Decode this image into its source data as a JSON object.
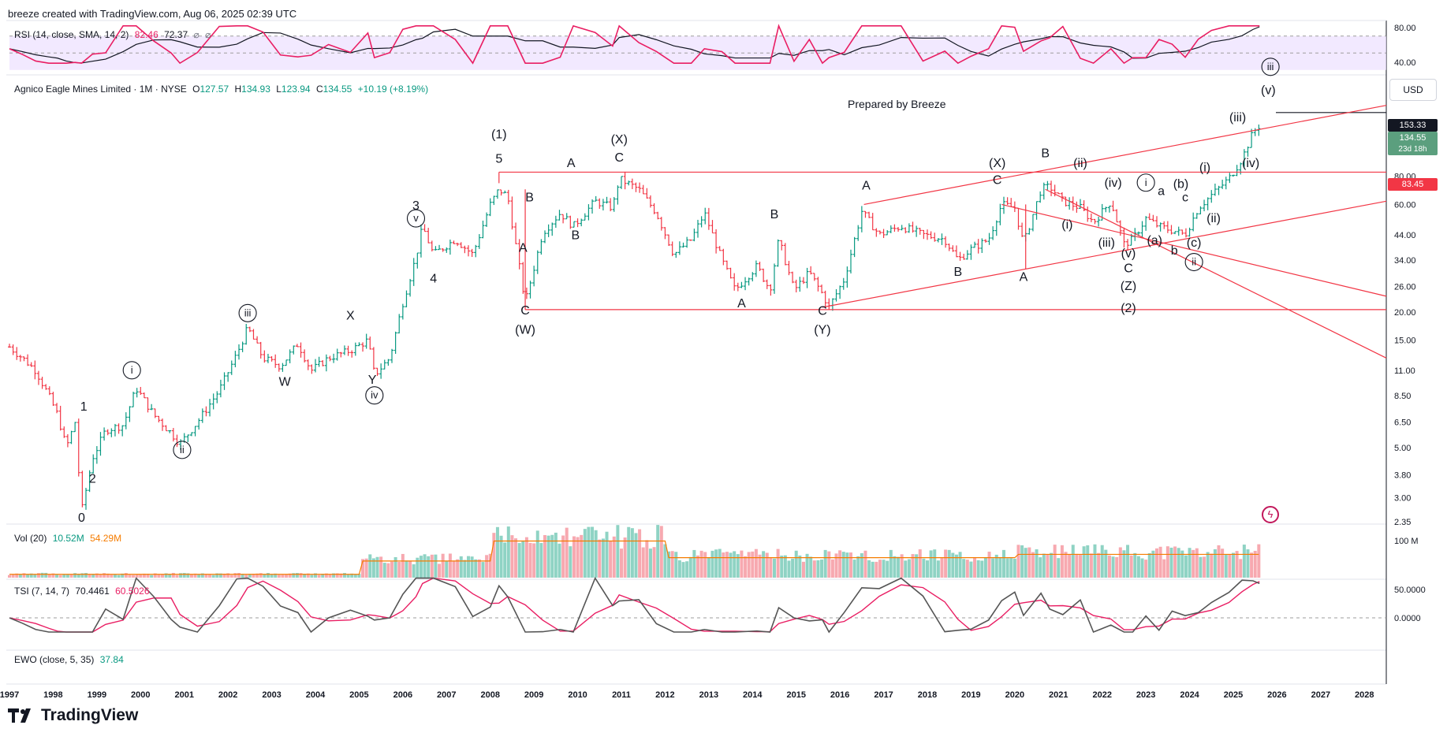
{
  "header": {
    "caption": "breeze created with TradingView.com, Aug 06, 2025 02:39 UTC"
  },
  "main_pane": {
    "symbol_legend": "Agnico Eagle Mines Limited · 1M · NYSE",
    "open_label": "O",
    "open": "127.57",
    "high_label": "H",
    "high": "134.93",
    "low_label": "L",
    "low": "123.94",
    "close_label": "C",
    "close": "134.55",
    "change": "+10.19 (+8.19%)",
    "currency": "USD",
    "note": "Prepared by Breeze",
    "price_tags": {
      "resistance": "153.33",
      "last": "134.55",
      "countdown": "23d 18h",
      "support": "83.45"
    }
  },
  "rsi_pane": {
    "legend": "RSI (14, close, SMA, 14, 2)",
    "rsi_value": "82.46",
    "sma_value": "72.37",
    "band_upper": 70,
    "band_lower": 30,
    "ticks": [
      "80.00",
      "40.00"
    ]
  },
  "vol_pane": {
    "legend": "Vol (20)",
    "vol_value": "10.52M",
    "ma_value": "54.29M",
    "ticks": [
      "100 M"
    ]
  },
  "tsi_pane": {
    "legend": "TSI (7, 14, 7)",
    "tsi_value": "70.4461",
    "signal_value": "60.5026",
    "ticks": [
      "50.0000",
      "0.0000"
    ]
  },
  "ewo_pane": {
    "legend": "EWO (close, 5, 35)",
    "ewo_value": "37.84"
  },
  "footer": {
    "brand": "TradingView"
  },
  "colors": {
    "up": "#089981",
    "down": "#f23645",
    "rsi": "#e91e63",
    "rsi_band": "#ede0ff",
    "tsi_signal": "#e91e63",
    "vol_ma": "#f57c00",
    "trendline": "#f23645",
    "last_price": "#4caf50",
    "resistance": "#131722"
  },
  "chart_data": {
    "type": "ohlc",
    "title": "Agnico Eagle Mines Limited",
    "timeframe": "1M",
    "y_scale": "log",
    "y_ticks": [
      "80.00",
      "60.00",
      "44.00",
      "34.00",
      "26.00",
      "20.00",
      "15.00",
      "11.00",
      "8.50",
      "6.50",
      "5.00",
      "3.80",
      "3.00",
      "2.35"
    ],
    "x_ticks": [
      "1997",
      "1998",
      "1999",
      "2000",
      "2001",
      "2002",
      "2003",
      "2004",
      "2005",
      "2006",
      "2007",
      "2008",
      "2009",
      "2010",
      "2011",
      "2012",
      "2013",
      "2014",
      "2015",
      "2016",
      "2017",
      "2018",
      "2019",
      "2020",
      "2021",
      "2022",
      "2023",
      "2024",
      "2025",
      "2026",
      "2027",
      "2028"
    ],
    "price_path": [
      [
        1997.0,
        14.0
      ],
      [
        1997.3,
        12.5
      ],
      [
        1997.6,
        11.0
      ],
      [
        1997.9,
        8.5
      ],
      [
        1998.1,
        7.0
      ],
      [
        1998.3,
        5.0
      ],
      [
        1998.5,
        6.5
      ],
      [
        1998.65,
        2.6
      ],
      [
        1998.9,
        4.5
      ],
      [
        1999.2,
        6.0
      ],
      [
        1999.6,
        6.3
      ],
      [
        1999.9,
        9.2
      ],
      [
        2000.3,
        7.0
      ],
      [
        2000.7,
        5.8
      ],
      [
        2000.9,
        5.2
      ],
      [
        2001.3,
        6.5
      ],
      [
        2001.8,
        9.0
      ],
      [
        2002.2,
        13.0
      ],
      [
        2002.45,
        17.0
      ],
      [
        2002.8,
        12.5
      ],
      [
        2003.2,
        11.5
      ],
      [
        2003.6,
        14.5
      ],
      [
        2003.9,
        11.0
      ],
      [
        2004.3,
        12.5
      ],
      [
        2004.8,
        13.5
      ],
      [
        2005.2,
        15.0
      ],
      [
        2005.35,
        10.5
      ],
      [
        2005.7,
        12.5
      ],
      [
        2006.0,
        22.0
      ],
      [
        2006.3,
        35.0
      ],
      [
        2006.45,
        48.0
      ],
      [
        2006.7,
        36.0
      ],
      [
        2007.2,
        42.0
      ],
      [
        2007.6,
        36.0
      ],
      [
        2008.0,
        60.0
      ],
      [
        2008.2,
        70.0
      ],
      [
        2008.4,
        65.0
      ],
      [
        2008.8,
        22.0
      ],
      [
        2009.2,
        45.0
      ],
      [
        2009.6,
        55.0
      ],
      [
        2009.9,
        48.0
      ],
      [
        2010.4,
        62.0
      ],
      [
        2010.8,
        58.0
      ],
      [
        2010.95,
        78.0
      ],
      [
        2011.4,
        70.0
      ],
      [
        2011.8,
        55.0
      ],
      [
        2012.2,
        36.0
      ],
      [
        2012.6,
        42.0
      ],
      [
        2012.9,
        55.0
      ],
      [
        2013.3,
        34.0
      ],
      [
        2013.6,
        25.0
      ],
      [
        2014.1,
        32.0
      ],
      [
        2014.4,
        25.0
      ],
      [
        2014.6,
        42.0
      ],
      [
        2014.95,
        25.0
      ],
      [
        2015.3,
        30.0
      ],
      [
        2015.6,
        24.0
      ],
      [
        2015.75,
        21.0
      ],
      [
        2016.1,
        28.0
      ],
      [
        2016.5,
        56.0
      ],
      [
        2016.9,
        44.0
      ],
      [
        2017.4,
        48.0
      ],
      [
        2017.9,
        44.0
      ],
      [
        2018.4,
        42.0
      ],
      [
        2018.7,
        34.0
      ],
      [
        2019.0,
        38.0
      ],
      [
        2019.4,
        42.0
      ],
      [
        2019.7,
        60.0
      ],
      [
        2020.0,
        58.0
      ],
      [
        2020.2,
        40.0
      ],
      [
        2020.6,
        70.0
      ],
      [
        2020.8,
        72.0
      ],
      [
        2021.1,
        62.0
      ],
      [
        2021.5,
        58.0
      ],
      [
        2021.8,
        50.0
      ],
      [
        2022.2,
        62.0
      ],
      [
        2022.5,
        40.0
      ],
      [
        2022.7,
        42.0
      ],
      [
        2023.0,
        52.0
      ],
      [
        2023.3,
        48.0
      ],
      [
        2023.6,
        46.0
      ],
      [
        2023.9,
        44.0
      ],
      [
        2024.2,
        58.0
      ],
      [
        2024.5,
        66.0
      ],
      [
        2024.9,
        78.0
      ],
      [
        2025.2,
        96.0
      ],
      [
        2025.45,
        125.0
      ],
      [
        2025.6,
        134.55
      ]
    ],
    "horizontal_levels": [
      {
        "label": "resistance",
        "value": 153.33
      },
      {
        "label": "support",
        "value": 83.45
      },
      {
        "label": "base",
        "value": 20.5
      }
    ],
    "wave_labels": [
      {
        "text": "0",
        "t": 1998.65,
        "y": 2.35
      },
      {
        "text": "1",
        "t": 1998.7,
        "y": 7.3
      },
      {
        "text": "2",
        "t": 1998.9,
        "y": 3.5
      },
      {
        "text": "ⓘ",
        "t": 1999.8,
        "y": 10.6
      },
      {
        "text": "ⓘⓘ",
        "t": 2000.95,
        "y": 4.7
      },
      {
        "text": "ⓘⓘⓘ",
        "t": 2002.45,
        "y": 19.0
      },
      {
        "text": "W",
        "t": 2003.3,
        "y": 9.4
      },
      {
        "text": "X",
        "t": 2004.8,
        "y": 18.5
      },
      {
        "text": "Y",
        "t": 2005.3,
        "y": 9.6
      },
      {
        "text": "ⓘⓥ",
        "t": 2005.35,
        "y": 8.2
      },
      {
        "text": "3",
        "t": 2006.3,
        "y": 57.0
      },
      {
        "text": "ⓥ",
        "t": 2006.3,
        "y": 50.0
      },
      {
        "text": "4",
        "t": 2006.7,
        "y": 27.0
      },
      {
        "text": "(1)",
        "t": 2008.2,
        "y": 118.0
      },
      {
        "text": "5",
        "t": 2008.2,
        "y": 92.0
      },
      {
        "text": "B",
        "t": 2008.9,
        "y": 62.0
      },
      {
        "text": "A",
        "t": 2008.75,
        "y": 37.0
      },
      {
        "text": "C",
        "t": 2008.8,
        "y": 19.5
      },
      {
        "text": "(W)",
        "t": 2008.8,
        "y": 16.0
      },
      {
        "text": "A",
        "t": 2009.85,
        "y": 88.0
      },
      {
        "text": "B",
        "t": 2009.95,
        "y": 42.0
      },
      {
        "text": "(X)",
        "t": 2010.95,
        "y": 112.0
      },
      {
        "text": "C",
        "t": 2010.95,
        "y": 93.0
      },
      {
        "text": "B",
        "t": 2014.5,
        "y": 52.0
      },
      {
        "text": "A",
        "t": 2013.75,
        "y": 21.0
      },
      {
        "text": "C",
        "t": 2015.6,
        "y": 19.4
      },
      {
        "text": "(Y)",
        "t": 2015.6,
        "y": 16.0
      },
      {
        "text": "A",
        "t": 2016.6,
        "y": 70.0
      },
      {
        "text": "B",
        "t": 2018.7,
        "y": 29.0
      },
      {
        "text": "(X)",
        "t": 2019.6,
        "y": 88.0
      },
      {
        "text": "C",
        "t": 2019.6,
        "y": 74.0
      },
      {
        "text": "A",
        "t": 2020.2,
        "y": 27.5
      },
      {
        "text": "B",
        "t": 2020.7,
        "y": 97.0
      },
      {
        "text": "(ii)",
        "t": 2021.5,
        "y": 88.0
      },
      {
        "text": "(i)",
        "t": 2021.2,
        "y": 47.0
      },
      {
        "text": "(iv)",
        "t": 2022.25,
        "y": 72.0
      },
      {
        "text": "(iii)",
        "t": 2022.1,
        "y": 39.0
      },
      {
        "text": "(v)",
        "t": 2022.6,
        "y": 35.0
      },
      {
        "text": "C",
        "t": 2022.6,
        "y": 30.0
      },
      {
        "text": "(Z)",
        "t": 2022.6,
        "y": 25.0
      },
      {
        "text": "(2)",
        "t": 2022.6,
        "y": 20.0
      },
      {
        "text": "ⓘ",
        "t": 2023.0,
        "y": 72.0
      },
      {
        "text": "a",
        "t": 2023.35,
        "y": 66.0
      },
      {
        "text": "(a)",
        "t": 2023.2,
        "y": 40.0
      },
      {
        "text": "b",
        "t": 2023.65,
        "y": 36.0
      },
      {
        "text": "(b)",
        "t": 2023.8,
        "y": 71.0
      },
      {
        "text": "c",
        "t": 2023.9,
        "y": 62.0
      },
      {
        "text": "(c)",
        "t": 2024.1,
        "y": 39.0
      },
      {
        "text": "ⓘⓘ",
        "t": 2024.1,
        "y": 32.0
      },
      {
        "text": "(ii)",
        "t": 2024.55,
        "y": 50.0
      },
      {
        "text": "(i)",
        "t": 2024.35,
        "y": 84.0
      },
      {
        "text": "(iii)",
        "t": 2025.1,
        "y": 140.0
      },
      {
        "text": "(iv)",
        "t": 2025.4,
        "y": 88.0
      },
      {
        "text": "(v)",
        "t": 2025.8,
        "y": 185.0
      },
      {
        "text": "ⓘⓘⓘ",
        "t": 2025.85,
        "y": 235.0
      }
    ]
  }
}
